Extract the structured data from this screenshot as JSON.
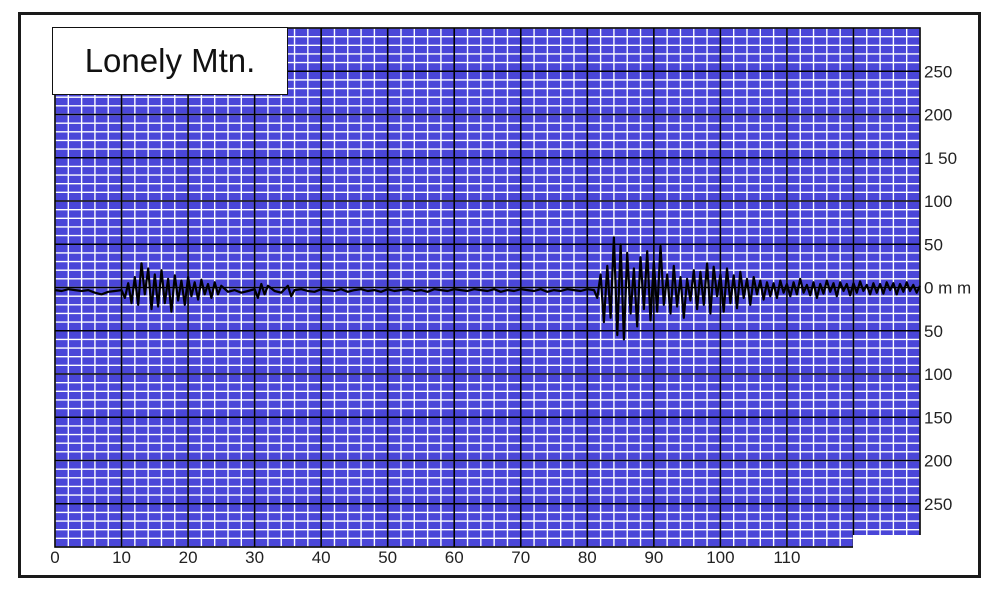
{
  "chart_data": {
    "type": "line",
    "title": "Lonely Mtn.",
    "x_ticks": [
      0,
      10,
      20,
      30,
      40,
      50,
      60,
      70,
      80,
      90,
      100,
      110
    ],
    "y_ticks": [
      {
        "value": 250,
        "label": "250"
      },
      {
        "value": 200,
        "label": "200"
      },
      {
        "value": 150,
        "label": "1 50"
      },
      {
        "value": 100,
        "label": "100"
      },
      {
        "value": 50,
        "label": "50"
      },
      {
        "value": 0,
        "label": "0 m m"
      },
      {
        "value": -50,
        "label": "50"
      },
      {
        "value": -100,
        "label": "100"
      },
      {
        "value": -150,
        "label": "150"
      },
      {
        "value": -200,
        "label": "200"
      },
      {
        "value": -250,
        "label": "250"
      }
    ],
    "xlim": [
      0,
      130
    ],
    "ylim": [
      -300,
      300
    ],
    "grid": true,
    "colors": {
      "background": "#4a46d8",
      "minor_grid": "#ffffff",
      "major_grid": "#000000",
      "trace": "#000000"
    },
    "series": [
      {
        "values": [
          [
            0,
            -3
          ],
          [
            1,
            -4
          ],
          [
            2,
            -2
          ],
          [
            3,
            -3
          ],
          [
            4,
            -4
          ],
          [
            5,
            -3
          ],
          [
            6,
            -6
          ],
          [
            7,
            -8
          ],
          [
            8,
            -5
          ],
          [
            9,
            -4
          ],
          [
            10,
            -3
          ],
          [
            10.5,
            -12
          ],
          [
            11,
            5
          ],
          [
            11.5,
            -18
          ],
          [
            12,
            12
          ],
          [
            12.5,
            -20
          ],
          [
            13,
            28
          ],
          [
            13.5,
            -8
          ],
          [
            14,
            22
          ],
          [
            14.5,
            -25
          ],
          [
            15,
            15
          ],
          [
            15.5,
            -22
          ],
          [
            16,
            20
          ],
          [
            16.5,
            -18
          ],
          [
            17,
            10
          ],
          [
            17.5,
            -28
          ],
          [
            18,
            14
          ],
          [
            18.5,
            -15
          ],
          [
            19,
            8
          ],
          [
            19.5,
            -20
          ],
          [
            20,
            12
          ],
          [
            20.5,
            -10
          ],
          [
            21,
            6
          ],
          [
            21.5,
            -14
          ],
          [
            22,
            9
          ],
          [
            22.5,
            -8
          ],
          [
            23,
            4
          ],
          [
            23.5,
            -12
          ],
          [
            24,
            6
          ],
          [
            24.5,
            -8
          ],
          [
            25,
            2
          ],
          [
            26,
            -5
          ],
          [
            27,
            -3
          ],
          [
            28,
            -6
          ],
          [
            29,
            -4
          ],
          [
            30,
            -2
          ],
          [
            30.5,
            -12
          ],
          [
            31,
            4
          ],
          [
            31.5,
            -8
          ],
          [
            32,
            2
          ],
          [
            33,
            -4
          ],
          [
            34,
            -6
          ],
          [
            35,
            2
          ],
          [
            35.5,
            -10
          ],
          [
            36,
            -3
          ],
          [
            37,
            -2
          ],
          [
            38,
            -4
          ],
          [
            39,
            -5
          ],
          [
            40,
            -2
          ],
          [
            41,
            -3
          ],
          [
            42,
            -4
          ],
          [
            43,
            -2
          ],
          [
            44,
            -5
          ],
          [
            45,
            -3
          ],
          [
            46,
            -2
          ],
          [
            47,
            -4
          ],
          [
            48,
            -3
          ],
          [
            49,
            -5
          ],
          [
            50,
            -2
          ],
          [
            51,
            -4
          ],
          [
            52,
            -3
          ],
          [
            53,
            -2
          ],
          [
            54,
            -4
          ],
          [
            55,
            -3
          ],
          [
            56,
            -5
          ],
          [
            57,
            -2
          ],
          [
            58,
            -3
          ],
          [
            59,
            -4
          ],
          [
            60,
            -2
          ],
          [
            61,
            -3
          ],
          [
            62,
            -4
          ],
          [
            63,
            -2
          ],
          [
            64,
            -3
          ],
          [
            65,
            -4
          ],
          [
            66,
            -2
          ],
          [
            67,
            -5
          ],
          [
            68,
            -3
          ],
          [
            69,
            -4
          ],
          [
            70,
            -2
          ],
          [
            71,
            -3
          ],
          [
            72,
            -4
          ],
          [
            73,
            -2
          ],
          [
            74,
            -5
          ],
          [
            75,
            -3
          ],
          [
            76,
            -4
          ],
          [
            77,
            -2
          ],
          [
            78,
            -3
          ],
          [
            79,
            -4
          ],
          [
            80,
            -2
          ],
          [
            81,
            -3
          ],
          [
            81.5,
            -12
          ],
          [
            82,
            15
          ],
          [
            82.5,
            -40
          ],
          [
            83,
            25
          ],
          [
            83.5,
            -35
          ],
          [
            84,
            58
          ],
          [
            84.5,
            -55
          ],
          [
            85,
            50
          ],
          [
            85.5,
            -60
          ],
          [
            86,
            40
          ],
          [
            86.5,
            -30
          ],
          [
            87,
            22
          ],
          [
            87.5,
            -45
          ],
          [
            88,
            35
          ],
          [
            88.5,
            -25
          ],
          [
            89,
            42
          ],
          [
            89.5,
            -38
          ],
          [
            90,
            30
          ],
          [
            90.5,
            -28
          ],
          [
            91,
            48
          ],
          [
            91.5,
            -20
          ],
          [
            92,
            15
          ],
          [
            92.5,
            -30
          ],
          [
            93,
            25
          ],
          [
            93.5,
            -22
          ],
          [
            94,
            12
          ],
          [
            94.5,
            -35
          ],
          [
            95,
            10
          ],
          [
            95.5,
            -15
          ],
          [
            96,
            20
          ],
          [
            96.5,
            -25
          ],
          [
            97,
            18
          ],
          [
            97.5,
            -20
          ],
          [
            98,
            28
          ],
          [
            98.5,
            -30
          ],
          [
            99,
            24
          ],
          [
            99.5,
            -10
          ],
          [
            100,
            15
          ],
          [
            100.5,
            -28
          ],
          [
            101,
            22
          ],
          [
            101.5,
            -18
          ],
          [
            102,
            14
          ],
          [
            102.5,
            -24
          ],
          [
            103,
            18
          ],
          [
            103.5,
            -12
          ],
          [
            104,
            10
          ],
          [
            104.5,
            -20
          ],
          [
            105,
            12
          ],
          [
            105.5,
            -8
          ],
          [
            106,
            8
          ],
          [
            106.5,
            -14
          ],
          [
            107,
            6
          ],
          [
            107.5,
            -10
          ],
          [
            108,
            5
          ],
          [
            108.5,
            -12
          ],
          [
            109,
            8
          ],
          [
            109.5,
            -6
          ],
          [
            110,
            4
          ],
          [
            110.5,
            -10
          ],
          [
            111,
            6
          ],
          [
            111.5,
            -8
          ],
          [
            112,
            10
          ],
          [
            112.5,
            -6
          ],
          [
            113,
            3
          ],
          [
            113.5,
            -9
          ],
          [
            114,
            6
          ],
          [
            114.5,
            -12
          ],
          [
            115,
            4
          ],
          [
            115.5,
            -7
          ],
          [
            116,
            8
          ],
          [
            116.5,
            -5
          ],
          [
            117,
            5
          ],
          [
            117.5,
            -10
          ],
          [
            118,
            6
          ],
          [
            118.5,
            -4
          ],
          [
            119,
            4
          ],
          [
            119.5,
            -9
          ],
          [
            120,
            5
          ],
          [
            120.5,
            -6
          ],
          [
            121,
            7
          ],
          [
            121.5,
            -4
          ],
          [
            122,
            3
          ],
          [
            122.5,
            -8
          ],
          [
            123,
            5
          ],
          [
            123.5,
            -6
          ],
          [
            124,
            4
          ],
          [
            124.5,
            -7
          ],
          [
            125,
            6
          ],
          [
            125.5,
            -3
          ],
          [
            126,
            5
          ],
          [
            126.5,
            -8
          ],
          [
            127,
            4
          ],
          [
            127.5,
            -5
          ],
          [
            128,
            6
          ],
          [
            128.5,
            -4
          ],
          [
            129,
            3
          ],
          [
            129.5,
            -6
          ],
          [
            130,
            2
          ]
        ]
      }
    ]
  }
}
